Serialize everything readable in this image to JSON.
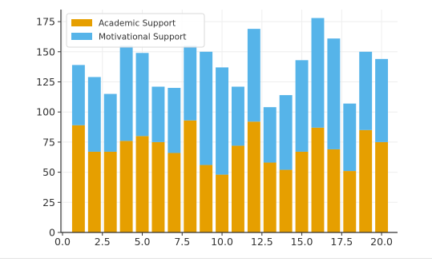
{
  "chart_data": {
    "type": "bar",
    "stacked": true,
    "title": "",
    "xlabel": "",
    "ylabel": "",
    "xlim": [
      -0.1,
      21.0
    ],
    "ylim": [
      0,
      185
    ],
    "xticks": [
      0.0,
      2.5,
      5.0,
      7.5,
      10.0,
      12.5,
      15.0,
      17.5,
      20.0
    ],
    "xtick_labels": [
      "0.0",
      "2.5",
      "5.0",
      "7.5",
      "10.0",
      "12.5",
      "15.0",
      "17.5",
      "20.0"
    ],
    "yticks": [
      0,
      25,
      50,
      75,
      100,
      125,
      150,
      175
    ],
    "ytick_labels": [
      "0",
      "25",
      "50",
      "75",
      "100",
      "125",
      "150",
      "175"
    ],
    "grid": true,
    "legend_position": "top-left",
    "x": [
      1,
      2,
      3,
      4,
      5,
      6,
      7,
      8,
      9,
      10,
      11,
      12,
      13,
      14,
      15,
      16,
      17,
      18,
      19,
      20
    ],
    "series": [
      {
        "name": "Academic Support",
        "color": "#e69f00",
        "values": [
          89,
          67,
          67,
          76,
          80,
          75,
          66,
          93,
          56,
          48,
          72,
          92,
          58,
          52,
          67,
          87,
          69,
          51,
          85,
          75
        ]
      },
      {
        "name": "Motivational Support",
        "color": "#56b4e9",
        "values": [
          50,
          62,
          48,
          79,
          69,
          46,
          54,
          62,
          94,
          89,
          49,
          77,
          46,
          62,
          76,
          91,
          92,
          56,
          65,
          69
        ]
      }
    ]
  }
}
